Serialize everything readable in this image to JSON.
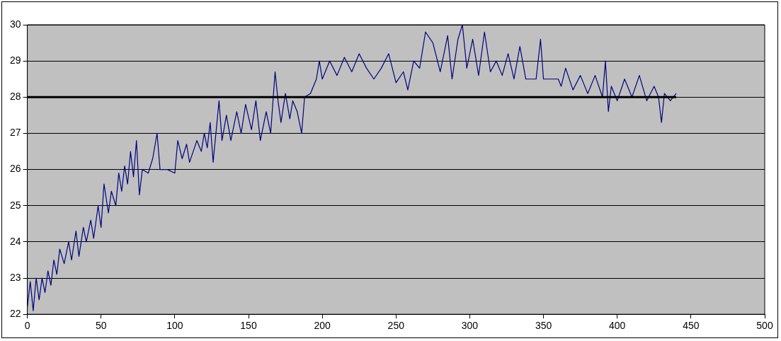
{
  "chart_data": {
    "type": "line",
    "xlim": [
      0,
      500
    ],
    "xticks": [
      0,
      50,
      100,
      150,
      200,
      250,
      300,
      350,
      400,
      450,
      500
    ],
    "ylim": [
      22,
      30
    ],
    "yticks": [
      22,
      23,
      24,
      25,
      26,
      27,
      28,
      29,
      30
    ],
    "grid": "y",
    "legend": false,
    "marker": "none",
    "line_style": "solid",
    "series": [
      {
        "color": "#000080",
        "x": [
          0,
          2,
          4,
          6,
          8,
          10,
          12,
          14,
          16,
          18,
          20,
          22,
          25,
          28,
          30,
          33,
          35,
          38,
          40,
          43,
          45,
          48,
          50,
          52,
          55,
          57,
          60,
          62,
          64,
          66,
          68,
          70,
          72,
          74,
          76,
          78,
          82,
          85,
          88,
          90,
          95,
          100,
          102,
          105,
          108,
          110,
          115,
          118,
          120,
          122,
          124,
          126,
          130,
          132,
          135,
          138,
          142,
          145,
          148,
          152,
          155,
          158,
          162,
          165,
          168,
          170,
          172,
          175,
          178,
          180,
          183,
          186,
          188,
          192,
          196,
          198,
          200,
          205,
          210,
          215,
          220,
          225,
          230,
          235,
          240,
          245,
          250,
          255,
          258,
          262,
          266,
          270,
          275,
          280,
          285,
          288,
          292,
          295,
          298,
          302,
          306,
          310,
          314,
          318,
          322,
          326,
          330,
          334,
          338,
          345,
          348,
          350,
          360,
          362,
          365,
          370,
          375,
          380,
          385,
          390,
          392,
          394,
          396,
          400,
          405,
          410,
          415,
          420,
          425,
          428,
          430,
          432,
          436,
          440
        ],
        "values": [
          22.2,
          22.9,
          22.1,
          23.0,
          22.4,
          23.0,
          22.6,
          23.2,
          22.8,
          23.5,
          23.1,
          23.8,
          23.4,
          24.0,
          23.5,
          24.3,
          23.6,
          24.4,
          24.0,
          24.6,
          24.1,
          25.0,
          24.4,
          25.6,
          24.8,
          25.4,
          25.0,
          25.9,
          25.4,
          26.1,
          25.6,
          26.5,
          25.8,
          26.8,
          25.3,
          26.0,
          25.9,
          26.3,
          27.0,
          26.0,
          26.0,
          25.9,
          26.8,
          26.3,
          26.7,
          26.2,
          26.8,
          26.5,
          27.0,
          26.6,
          27.3,
          26.2,
          27.9,
          26.8,
          27.5,
          26.8,
          27.6,
          27.0,
          27.8,
          27.1,
          27.9,
          26.8,
          27.6,
          27.0,
          28.7,
          27.9,
          27.3,
          28.1,
          27.4,
          27.9,
          27.6,
          27.0,
          28.0,
          28.1,
          28.5,
          29.0,
          28.5,
          29.0,
          28.6,
          29.1,
          28.7,
          29.2,
          28.8,
          28.5,
          28.8,
          29.2,
          28.4,
          28.7,
          28.2,
          29.0,
          28.8,
          29.8,
          29.5,
          28.7,
          29.7,
          28.5,
          29.6,
          30.0,
          28.8,
          29.6,
          28.6,
          29.8,
          28.7,
          29.0,
          28.6,
          29.2,
          28.5,
          29.4,
          28.5,
          28.5,
          29.6,
          28.5,
          28.5,
          28.3,
          28.8,
          28.2,
          28.6,
          28.1,
          28.6,
          28.0,
          29.0,
          27.6,
          28.3,
          27.9,
          28.5,
          28.0,
          28.6,
          27.9,
          28.3,
          28.0,
          27.3,
          28.1,
          27.9,
          28.1
        ]
      },
      {
        "color": "#000000",
        "x": [
          0,
          440
        ],
        "values": [
          28,
          28
        ]
      }
    ]
  }
}
